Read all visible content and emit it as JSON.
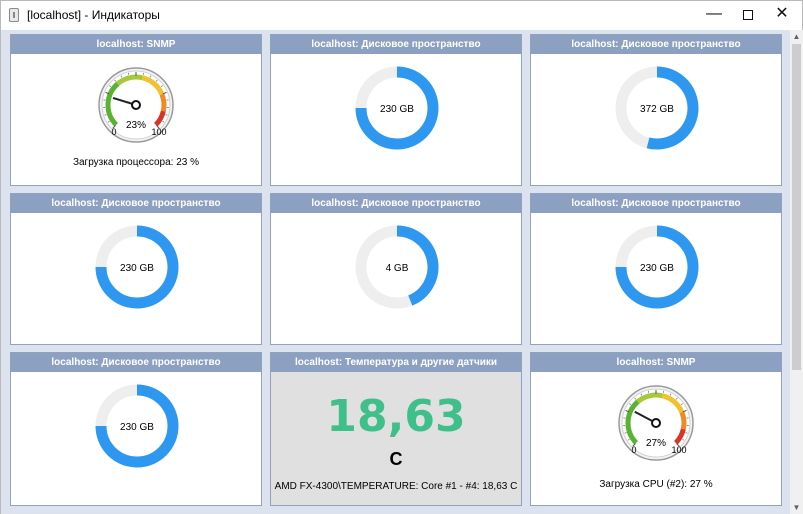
{
  "window": {
    "title": "[localhost] - Индикаторы",
    "minimize_glyph": "—",
    "close_glyph": "✕"
  },
  "panels": [
    {
      "id": "p1",
      "type": "gauge",
      "header": "localhost: SNMP",
      "value": 23,
      "value_label": "23%",
      "min_label": "0",
      "max_label": "100",
      "caption": "Загрузка процессора: 23 %"
    },
    {
      "id": "p2",
      "type": "donut",
      "header": "localhost: Дисковое пространство",
      "label": "230 GB",
      "fill_fraction": 0.75
    },
    {
      "id": "p3",
      "type": "donut",
      "header": "localhost: Дисковое пространство",
      "label": "372 GB",
      "fill_fraction": 0.54
    },
    {
      "id": "p4",
      "type": "donut",
      "header": "localhost: Дисковое пространство",
      "label": "230 GB",
      "fill_fraction": 0.75
    },
    {
      "id": "p5",
      "type": "donut",
      "header": "localhost: Дисковое пространство",
      "label": "4 GB",
      "fill_fraction": 0.44
    },
    {
      "id": "p6",
      "type": "donut",
      "header": "localhost: Дисковое пространство",
      "label": "230 GB",
      "fill_fraction": 0.75
    },
    {
      "id": "p7",
      "type": "donut",
      "header": "localhost: Дисковое пространство",
      "label": "230 GB",
      "fill_fraction": 0.75
    },
    {
      "id": "p8",
      "type": "value",
      "header": "localhost: Температура и другие датчики",
      "value": "18,63",
      "unit": "C",
      "caption": "AMD FX-4300\\TEMPERATURE:  Core #1 - #4: 18,63 C"
    },
    {
      "id": "p9",
      "type": "gauge",
      "header": "localhost: SNMP",
      "value": 27,
      "value_label": "27%",
      "min_label": "0",
      "max_label": "100",
      "caption": "Загрузка CPU (#2): 27 %"
    }
  ],
  "colors": {
    "header_bg": "#8ca0c2",
    "donut_fill": "#2e98f0",
    "donut_track": "#eeeeee",
    "temperature_value": "#3fbf8a",
    "gauge_green": "#58b332",
    "gauge_yellow": "#f2c12e",
    "gauge_red": "#d8352a"
  }
}
